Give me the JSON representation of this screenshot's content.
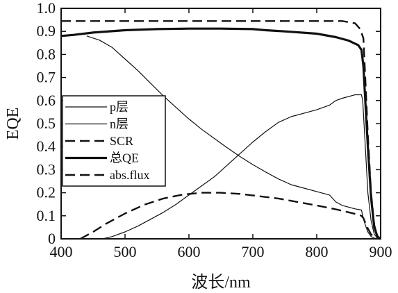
{
  "chart_data": {
    "type": "line",
    "xlabel": "波长/nm",
    "ylabel": "EQE",
    "xlim": [
      400,
      900
    ],
    "ylim": [
      0,
      1.0
    ],
    "xticks": [
      400,
      500,
      600,
      700,
      800,
      900
    ],
    "yticks": [
      0,
      0.1,
      0.2,
      0.3,
      0.4,
      0.5,
      0.6,
      0.7,
      0.8,
      0.9,
      1.0
    ],
    "ytick_labels": [
      "0",
      "0.1",
      "0.2",
      "0.3",
      "0.4",
      "0.5",
      "0.6",
      "0.7",
      "0.8",
      "0.9",
      "1.0"
    ],
    "grid": false,
    "legend_position": "left",
    "series": [
      {
        "name": "p层",
        "style": "thin-solid",
        "color": "#111111",
        "x": [
          440,
          460,
          480,
          500,
          520,
          540,
          560,
          580,
          600,
          620,
          640,
          660,
          680,
          700,
          720,
          740,
          760,
          780,
          800,
          820,
          830,
          840,
          860,
          870,
          872,
          876,
          880,
          885,
          890,
          895,
          900
        ],
        "y": [
          0.88,
          0.862,
          0.83,
          0.78,
          0.73,
          0.675,
          0.62,
          0.57,
          0.52,
          0.475,
          0.435,
          0.395,
          0.357,
          0.322,
          0.29,
          0.26,
          0.235,
          0.22,
          0.205,
          0.19,
          0.16,
          0.145,
          0.13,
          0.125,
          0.1,
          0.06,
          0.03,
          0.01,
          0.003,
          0.001,
          0
        ]
      },
      {
        "name": "n层",
        "style": "thin-solid",
        "color": "#111111",
        "x": [
          465,
          480,
          500,
          520,
          540,
          560,
          580,
          600,
          620,
          640,
          660,
          680,
          700,
          720,
          740,
          760,
          780,
          800,
          820,
          830,
          840,
          860,
          870,
          872,
          875,
          878,
          880,
          885,
          890,
          895,
          900
        ],
        "y": [
          0,
          0.01,
          0.03,
          0.055,
          0.085,
          0.115,
          0.15,
          0.19,
          0.23,
          0.27,
          0.32,
          0.37,
          0.42,
          0.465,
          0.505,
          0.53,
          0.545,
          0.56,
          0.58,
          0.6,
          0.61,
          0.625,
          0.625,
          0.6,
          0.45,
          0.3,
          0.2,
          0.08,
          0.02,
          0.004,
          0
        ]
      },
      {
        "name": "SCR",
        "style": "dashed",
        "color": "#111111",
        "x": [
          400,
          450,
          500,
          550,
          600,
          650,
          700,
          750,
          800,
          840,
          860,
          868,
          873,
          876,
          880,
          885,
          890,
          895,
          900
        ],
        "y": [
          0.945,
          0.945,
          0.945,
          0.945,
          0.945,
          0.945,
          0.945,
          0.945,
          0.945,
          0.945,
          0.935,
          0.91,
          0.87,
          0.7,
          0.45,
          0.2,
          0.06,
          0.01,
          0
        ]
      },
      {
        "name": "总QE",
        "style": "thick-solid",
        "color": "#111111",
        "x": [
          400,
          420,
          450,
          500,
          550,
          600,
          650,
          700,
          720,
          750,
          800,
          830,
          850,
          865,
          870,
          873,
          876,
          880,
          885,
          890,
          895,
          900
        ],
        "y": [
          0.88,
          0.885,
          0.895,
          0.905,
          0.91,
          0.912,
          0.912,
          0.91,
          0.905,
          0.9,
          0.89,
          0.875,
          0.86,
          0.84,
          0.82,
          0.75,
          0.6,
          0.4,
          0.18,
          0.05,
          0.01,
          0
        ]
      },
      {
        "name": "abs.flux",
        "style": "dashed",
        "color": "#111111",
        "x": [
          430,
          450,
          470,
          500,
          530,
          560,
          590,
          620,
          650,
          680,
          710,
          740,
          770,
          800,
          830,
          850,
          865,
          870,
          873,
          876,
          880,
          885,
          890,
          895,
          900
        ],
        "y": [
          0,
          0.03,
          0.065,
          0.11,
          0.148,
          0.175,
          0.192,
          0.2,
          0.2,
          0.195,
          0.185,
          0.175,
          0.16,
          0.145,
          0.128,
          0.115,
          0.105,
          0.1,
          0.09,
          0.07,
          0.045,
          0.02,
          0.005,
          0.001,
          0
        ]
      }
    ]
  }
}
